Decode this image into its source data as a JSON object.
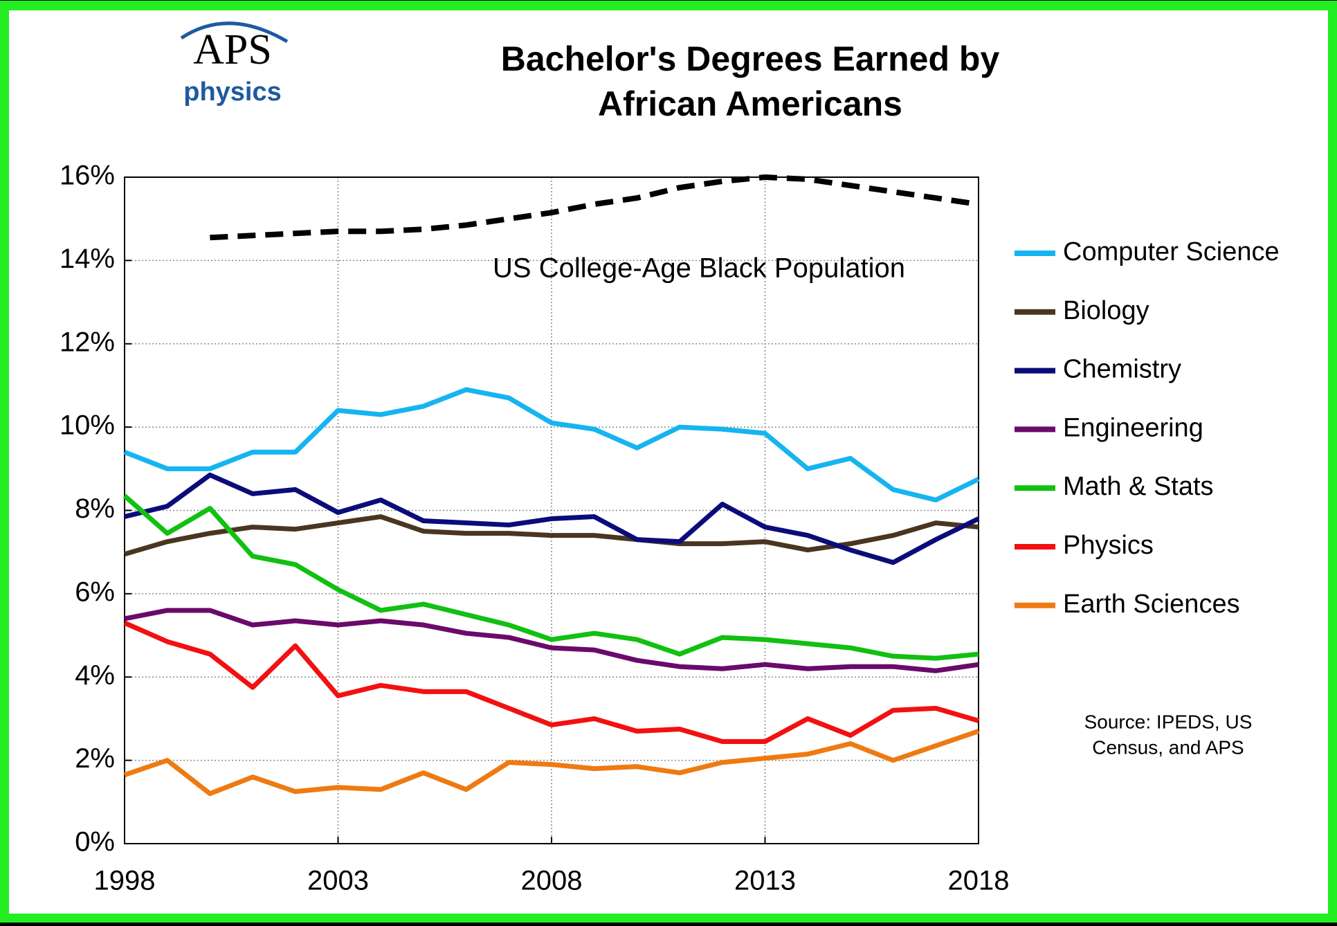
{
  "logo": {
    "name": "APS",
    "sub": "physics"
  },
  "chart_data": {
    "type": "line",
    "title": [
      "Bachelor's Degrees Earned by",
      "African Americans"
    ],
    "source": [
      "Source: IPEDS, US",
      "Census, and APS"
    ],
    "x": [
      1998,
      1999,
      2000,
      2001,
      2002,
      2003,
      2004,
      2005,
      2006,
      2007,
      2008,
      2009,
      2010,
      2011,
      2012,
      2013,
      2014,
      2015,
      2016,
      2017,
      2018
    ],
    "xlim": [
      1998,
      2018
    ],
    "xticks": [
      1998,
      2003,
      2008,
      2013,
      2018
    ],
    "ylim": [
      0,
      16
    ],
    "yticks": [
      {
        "value": 0,
        "label": "0%"
      },
      {
        "value": 2,
        "label": "2%"
      },
      {
        "value": 4,
        "label": "4%"
      },
      {
        "value": 6,
        "label": "6%"
      },
      {
        "value": 8,
        "label": "8%"
      },
      {
        "value": 10,
        "label": "10%"
      },
      {
        "value": 12,
        "label": "12%"
      },
      {
        "value": 14,
        "label": "14%"
      },
      {
        "value": 16,
        "label": "16%"
      }
    ],
    "grid": true,
    "legend": "right",
    "series": [
      {
        "name": "Computer Science",
        "color": "#16b4f0",
        "values": [
          9.4,
          9.0,
          9.0,
          9.4,
          9.4,
          10.4,
          10.3,
          10.5,
          10.9,
          10.7,
          10.1,
          9.95,
          9.5,
          10.0,
          9.95,
          9.85,
          9.0,
          9.25,
          8.5,
          8.25,
          8.75
        ]
      },
      {
        "name": "Biology",
        "color": "#4a3520",
        "values": [
          6.95,
          7.25,
          7.45,
          7.6,
          7.55,
          7.7,
          7.85,
          7.5,
          7.45,
          7.45,
          7.4,
          7.4,
          7.3,
          7.2,
          7.2,
          7.25,
          7.05,
          7.2,
          7.4,
          7.7,
          7.6
        ]
      },
      {
        "name": "Chemistry",
        "color": "#0b0c7a",
        "values": [
          7.85,
          8.1,
          8.85,
          8.4,
          8.5,
          7.95,
          8.25,
          7.75,
          7.7,
          7.65,
          7.8,
          7.85,
          7.3,
          7.25,
          8.15,
          7.6,
          7.4,
          7.05,
          6.75,
          7.3,
          7.8
        ]
      },
      {
        "name": "Engineering",
        "color": "#6a0a6a",
        "values": [
          5.4,
          5.6,
          5.6,
          5.25,
          5.35,
          5.25,
          5.35,
          5.25,
          5.05,
          4.95,
          4.7,
          4.65,
          4.4,
          4.25,
          4.2,
          4.3,
          4.2,
          4.25,
          4.25,
          4.15,
          4.3
        ]
      },
      {
        "name": "Math & Stats",
        "color": "#11c011",
        "values": [
          8.35,
          7.45,
          8.05,
          6.9,
          6.7,
          6.1,
          5.6,
          5.75,
          5.5,
          5.25,
          4.9,
          5.05,
          4.9,
          4.55,
          4.95,
          4.9,
          4.8,
          4.7,
          4.5,
          4.45,
          4.55
        ]
      },
      {
        "name": "Physics",
        "color": "#f31010",
        "values": [
          5.3,
          4.85,
          4.55,
          3.75,
          4.75,
          3.55,
          3.8,
          3.65,
          3.65,
          3.25,
          2.85,
          3.0,
          2.7,
          2.75,
          2.45,
          2.45,
          3.0,
          2.6,
          3.2,
          3.25,
          2.95
        ]
      },
      {
        "name": "Earth Sciences",
        "color": "#ee7a12",
        "values": [
          1.65,
          2.0,
          1.2,
          1.6,
          1.25,
          1.35,
          1.3,
          1.7,
          1.3,
          1.95,
          1.9,
          1.8,
          1.85,
          1.7,
          1.95,
          2.05,
          2.15,
          2.4,
          2.0,
          2.35,
          2.7
        ]
      },
      {
        "name": "US College-Age  Black Population",
        "color": "#000000",
        "dashed": true,
        "legend": false,
        "values": [
          null,
          null,
          14.55,
          14.6,
          14.65,
          14.7,
          14.7,
          14.75,
          14.85,
          15.0,
          15.15,
          15.35,
          15.5,
          15.75,
          15.9,
          16.0,
          15.95,
          15.8,
          15.65,
          15.5,
          15.35
        ]
      }
    ]
  }
}
